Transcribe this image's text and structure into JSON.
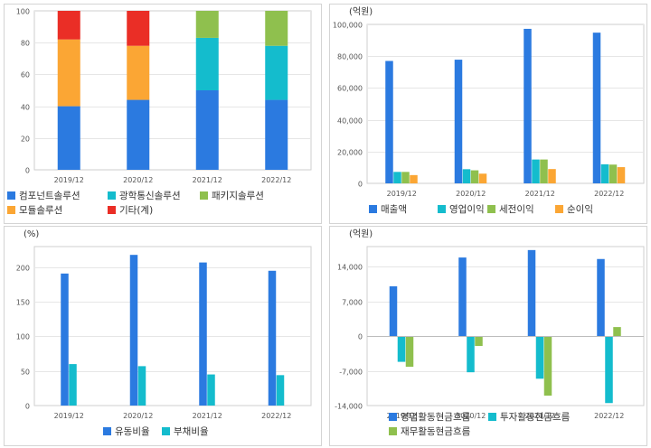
{
  "colors": {
    "blue": "#2b7ae0",
    "cyan": "#14bccd",
    "green": "#8fc04e",
    "orange": "#fba634",
    "red": "#ea2e26"
  },
  "chart_data": [
    {
      "type": "bar",
      "stacked": true,
      "unit": "",
      "categories": [
        "2019/12",
        "2020/12",
        "2021/12",
        "2022/12"
      ],
      "ylim": [
        0,
        100
      ],
      "yticks": [
        0,
        20,
        40,
        60,
        80,
        100
      ],
      "grid": true,
      "legend_position": "bottom",
      "series": [
        {
          "name": "컴포넌트솔루션",
          "color": "#2b7ae0",
          "values": [
            40,
            44,
            50,
            44
          ]
        },
        {
          "name": "광학통신솔루션",
          "color": "#14bccd",
          "values": [
            0,
            0,
            33,
            34
          ]
        },
        {
          "name": "패키지솔루션",
          "color": "#8fc04e",
          "values": [
            0,
            0,
            17,
            22
          ]
        },
        {
          "name": "모듈솔루션",
          "color": "#fba634",
          "values": [
            42,
            34,
            0,
            0
          ]
        },
        {
          "name": "기타(계)",
          "color": "#ea2e26",
          "values": [
            18,
            22,
            0,
            0
          ]
        }
      ]
    },
    {
      "type": "bar",
      "stacked": false,
      "unit": "(억원)",
      "categories": [
        "2019/12",
        "2020/12",
        "2021/12",
        "2022/12"
      ],
      "ylim": [
        0,
        100000
      ],
      "yticks": [
        0,
        20000,
        40000,
        60000,
        80000,
        100000
      ],
      "ytick_labels": [
        "0",
        "20,000",
        "40,000",
        "60,000",
        "80,000",
        "100,000"
      ],
      "grid": true,
      "legend_position": "bottom",
      "series": [
        {
          "name": "매출액",
          "color": "#2b7ae0",
          "values": [
            77000,
            77800,
            97200,
            94800
          ]
        },
        {
          "name": "영업이익",
          "color": "#14bccd",
          "values": [
            7200,
            8900,
            15000,
            12000
          ]
        },
        {
          "name": "세전이익",
          "color": "#8fc04e",
          "values": [
            7200,
            8200,
            15000,
            11800
          ]
        },
        {
          "name": "순이익",
          "color": "#fba634",
          "values": [
            5200,
            6100,
            9000,
            10200
          ]
        }
      ]
    },
    {
      "type": "bar",
      "stacked": false,
      "unit": "(%)",
      "categories": [
        "2019/12",
        "2020/12",
        "2021/12",
        "2022/12"
      ],
      "ylim": [
        0,
        230
      ],
      "yticks": [
        0,
        50,
        100,
        150,
        200
      ],
      "grid": true,
      "legend_position": "bottom",
      "series": [
        {
          "name": "유동비율",
          "color": "#2b7ae0",
          "values": [
            191,
            218,
            207,
            195
          ]
        },
        {
          "name": "부채비율",
          "color": "#14bccd",
          "values": [
            60,
            57,
            45,
            44
          ]
        }
      ]
    },
    {
      "type": "bar",
      "stacked": false,
      "unit": "(억원)",
      "categories": [
        "2019/12",
        "2020/12",
        "2021/12",
        "2022/12"
      ],
      "ylim": [
        -14000,
        18000
      ],
      "yticks": [
        -14000,
        -7000,
        0,
        7000,
        14000
      ],
      "ytick_labels": [
        "-14,000",
        "-7,000",
        "0",
        "7,000",
        "14,000"
      ],
      "grid": true,
      "legend_position": "bottom",
      "series": [
        {
          "name": "영업활동현금흐름",
          "color": "#2b7ae0",
          "values": [
            10000,
            15800,
            17300,
            15500
          ]
        },
        {
          "name": "투자활동현금흐름",
          "color": "#14bccd",
          "values": [
            -5200,
            -7300,
            -8600,
            -13500
          ]
        },
        {
          "name": "재무활동현금흐름",
          "color": "#8fc04e",
          "values": [
            -6200,
            -2000,
            -12000,
            1800
          ]
        }
      ]
    }
  ]
}
